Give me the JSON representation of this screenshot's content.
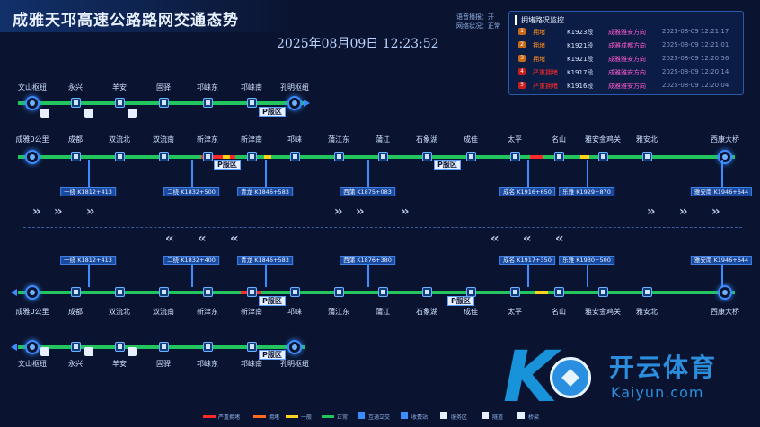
{
  "header": {
    "title": "成雅天邛高速公路路网交通态势",
    "datetime": "2025年08月09日  12:23:52",
    "status_voice": "语音播报：开",
    "status_net": "网络状况：正常"
  },
  "panel": {
    "title": "拥堵路况监控",
    "rows": [
      {
        "rank": "1",
        "level": "拥堵",
        "section": "K1923段",
        "direction": "成雅雅安方向",
        "time": "2025-08-09 12:21:17",
        "level_color": "#ff8a1e",
        "dir_color": "#ff5ad2"
      },
      {
        "rank": "2",
        "level": "拥堵",
        "section": "K1921段",
        "direction": "成雅成都方向",
        "time": "2025-08-09 12:21:01",
        "level_color": "#ff8a1e",
        "dir_color": "#ff5ad2"
      },
      {
        "rank": "3",
        "level": "拥堵",
        "section": "K1921段",
        "direction": "成雅雅安方向",
        "time": "2025-08-09 12:20:56",
        "level_color": "#ff8a1e",
        "dir_color": "#ff5ad2"
      },
      {
        "rank": "4",
        "level": "严重拥堵",
        "section": "K1917段",
        "direction": "成雅雅安方向",
        "time": "2025-08-09 12:20:14",
        "level_color": "#ff2a2a",
        "dir_color": "#ff5ad2"
      },
      {
        "rank": "5",
        "level": "严重拥堵",
        "section": "K1916段",
        "direction": "成雅雅安方向",
        "time": "2025-08-09 12:20:04",
        "level_color": "#ff2a2a",
        "dir_color": "#ff5ad2"
      }
    ]
  },
  "routes": {
    "tq_top": [
      "文山枢纽",
      "永兴",
      "羊安",
      "固驿",
      "邛崃东",
      "邛崃南",
      "孔明枢纽"
    ],
    "cy_top": [
      "成雅0公里",
      "成都",
      "双流北",
      "双流南",
      "新津东",
      "新津南",
      "邛崃",
      "蒲江东",
      "蒲江",
      "石象湖",
      "成佳",
      "太平",
      "名山",
      "雅安金鸡关",
      "雅安北",
      "西康大桥"
    ],
    "tags_top": [
      "一绕 K1812+413",
      "二绕 K1832+500",
      "青龙 K1846+583",
      "西蒲 K1875+083",
      "成名 K1916+650",
      "乐雅 K1929+870",
      "雅安南 K1946+644"
    ],
    "tags_bottom": [
      "一绕 K1812+413",
      "二绕 K1832+400",
      "青龙 K1846+583",
      "西蒲 K1876+380",
      "成名 K1917+350",
      "乐雅 K1930+500",
      "雅安南 K1946+644"
    ],
    "cy_bottom": [
      "成雅0公里",
      "成都",
      "双流北",
      "双流南",
      "新津东",
      "新津南",
      "邛崃",
      "蒲江东",
      "蒲江",
      "石象湖",
      "成佳",
      "太平",
      "名山",
      "雅安金鸡关",
      "雅安北",
      "西康大桥"
    ],
    "tq_bottom": [
      "文山枢纽",
      "永兴",
      "羊安",
      "固驿",
      "邛崃东",
      "邛崃南",
      "孔明枢纽"
    ],
    "parking_label": "P​服区",
    "parking_text": "P服区"
  },
  "legend": {
    "items": [
      {
        "label": "严重拥堵",
        "color": "#ff2a2a"
      },
      {
        "label": "拥堵",
        "color": "#ff6a1e"
      },
      {
        "label": "一般",
        "color": "#ffd21e"
      },
      {
        "label": "正常",
        "color": "#22c55e"
      },
      {
        "label": "互通立交",
        "color": "#3b8cff"
      },
      {
        "label": "收费站",
        "color": "#3b8cff"
      },
      {
        "label": "服务区",
        "color": "#e8f0ff"
      },
      {
        "label": "隧道",
        "color": "#e8f0ff"
      },
      {
        "label": "桥梁",
        "color": "#e8f0ff"
      }
    ]
  },
  "watermark": {
    "cn": "开云体育",
    "en": "Kaiyun.com"
  },
  "colors": {
    "normal": "#22c55e",
    "severe": "#ff2a2a",
    "jam": "#ff6a1e",
    "slow": "#ffd21e",
    "accent": "#3b8cff"
  }
}
